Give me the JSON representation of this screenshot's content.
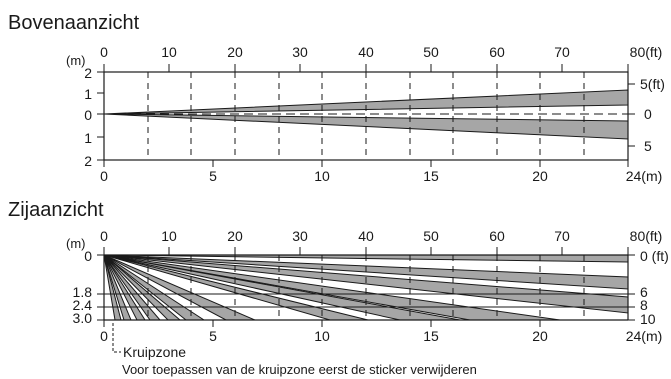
{
  "top_view": {
    "title": "Bovenaanzicht",
    "ft_axis": {
      "unit_label": "(ft)",
      "ticks": [
        "0",
        "10",
        "20",
        "30",
        "40",
        "50",
        "60",
        "70",
        "80(ft)"
      ]
    },
    "m_axis": {
      "ticks": [
        "0",
        "5",
        "10",
        "15",
        "20",
        "24(m)"
      ]
    },
    "left_axis": {
      "unit_label": "(m)",
      "ticks": [
        "2",
        "1",
        "0",
        "1",
        "2"
      ]
    },
    "right_axis": {
      "ticks": [
        "5(ft)",
        "0",
        "5"
      ]
    }
  },
  "side_view": {
    "title": "Zijaanzicht",
    "ft_axis": {
      "unit_label": "(m)",
      "ticks": [
        "0",
        "10",
        "20",
        "30",
        "40",
        "50",
        "60",
        "70",
        "80(ft)"
      ]
    },
    "m_axis": {
      "ticks": [
        "0",
        "5",
        "10",
        "15",
        "20",
        "24(m)"
      ]
    },
    "left_axis": {
      "ticks": [
        "0",
        "1.8",
        "2.4",
        "3.0"
      ]
    },
    "right_axis": {
      "ticks": [
        "0 (ft)",
        "6",
        "8",
        "10"
      ]
    },
    "crawl_zone_label": "Kruipzone",
    "note": "Voor toepassen van de kruipzone eerst de sticker verwijderen"
  },
  "colors": {
    "beam_fill": "#a6a6a6",
    "line": "#1a1a1a",
    "dash": "#1a1a1a"
  }
}
